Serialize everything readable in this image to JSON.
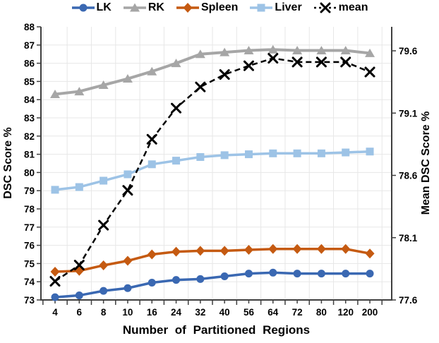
{
  "chart_data": {
    "type": "line",
    "title": "",
    "xlabel": "Number of Partitioned Regions",
    "categories": [
      "4",
      "6",
      "8",
      "10",
      "16",
      "24",
      "32",
      "40",
      "56",
      "64",
      "72",
      "80",
      "120",
      "200"
    ],
    "left_axis": {
      "label": "DSC Score %",
      "min": 73,
      "max": 88,
      "tick_step": 1
    },
    "right_axis": {
      "label": "Mean DSC Score %",
      "min": 77.6,
      "max": 79.6,
      "tick_step": 0.5,
      "tick_labels": [
        "77.6",
        "78.1",
        "78.6",
        "79.1",
        "79.6"
      ]
    },
    "grid": true,
    "legend_position": "top",
    "grid_color": "#E7E7E7",
    "axis_color": "#3F3F3F",
    "series": [
      {
        "name": "RK",
        "axis": "left",
        "color": "#A6A6A6",
        "marker": "triangle",
        "line": "solid",
        "values": [
          84.3,
          84.45,
          84.8,
          85.15,
          85.55,
          86.0,
          86.5,
          86.6,
          86.7,
          86.75,
          86.7,
          86.7,
          86.7,
          86.55
        ]
      },
      {
        "name": "Liver",
        "axis": "left",
        "color": "#9DC3E6",
        "marker": "square",
        "line": "solid",
        "values": [
          79.05,
          79.2,
          79.55,
          79.9,
          80.45,
          80.65,
          80.85,
          80.95,
          81.0,
          81.05,
          81.05,
          81.05,
          81.1,
          81.15
        ]
      },
      {
        "name": "Spleen",
        "axis": "left",
        "color": "#C55A11",
        "marker": "diamond",
        "line": "solid",
        "values": [
          74.55,
          74.6,
          74.9,
          75.15,
          75.5,
          75.65,
          75.7,
          75.7,
          75.75,
          75.8,
          75.8,
          75.8,
          75.8,
          75.55
        ]
      },
      {
        "name": "LK",
        "axis": "left",
        "color": "#3A68B2",
        "marker": "circle",
        "line": "solid",
        "values": [
          73.15,
          73.25,
          73.5,
          73.65,
          73.95,
          74.1,
          74.15,
          74.3,
          74.45,
          74.5,
          74.45,
          74.45,
          74.45,
          74.45
        ]
      },
      {
        "name": "mean",
        "axis": "right",
        "color": "#000000",
        "marker": "x",
        "line": "dashed",
        "values": [
          77.75,
          77.88,
          78.2,
          78.48,
          78.89,
          79.14,
          79.31,
          79.41,
          79.48,
          79.54,
          79.51,
          79.51,
          79.51,
          79.43
        ]
      }
    ],
    "legend_order": [
      "LK",
      "RK",
      "Spleen",
      "Liver",
      "mean"
    ]
  }
}
